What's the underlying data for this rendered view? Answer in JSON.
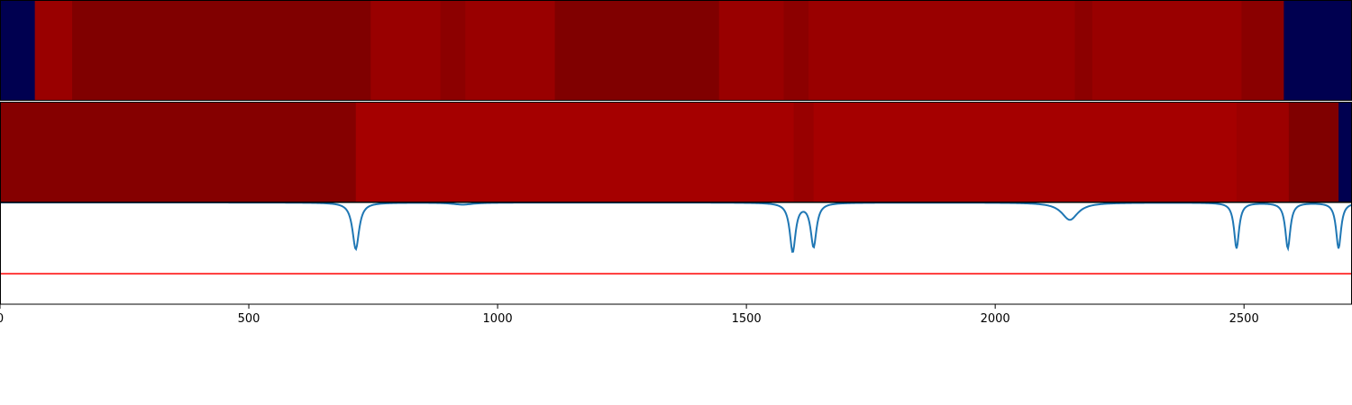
{
  "chart_data": [
    {
      "type": "heatmap",
      "name": "segment-track-1",
      "title": "",
      "segments": [
        {
          "start": 0,
          "end": 70,
          "color": "#000050"
        },
        {
          "start": 70,
          "end": 145,
          "color": "#990000"
        },
        {
          "start": 145,
          "end": 745,
          "color": "#800000"
        },
        {
          "start": 745,
          "end": 885,
          "color": "#990000"
        },
        {
          "start": 885,
          "end": 935,
          "color": "#8c0000"
        },
        {
          "start": 935,
          "end": 1115,
          "color": "#990000"
        },
        {
          "start": 1115,
          "end": 1445,
          "color": "#800000"
        },
        {
          "start": 1445,
          "end": 1575,
          "color": "#990000"
        },
        {
          "start": 1575,
          "end": 1625,
          "color": "#8c0000"
        },
        {
          "start": 1625,
          "end": 2160,
          "color": "#990000"
        },
        {
          "start": 2160,
          "end": 2195,
          "color": "#8c0000"
        },
        {
          "start": 2195,
          "end": 2495,
          "color": "#990000"
        },
        {
          "start": 2495,
          "end": 2580,
          "color": "#8a0000"
        },
        {
          "start": 2580,
          "end": 2717,
          "color": "#000050"
        }
      ]
    },
    {
      "type": "heatmap",
      "name": "segment-track-2",
      "title": "",
      "segments": [
        {
          "start": 0,
          "end": 715,
          "color": "#850000"
        },
        {
          "start": 715,
          "end": 1595,
          "color": "#a50000"
        },
        {
          "start": 1595,
          "end": 1635,
          "color": "#980000"
        },
        {
          "start": 1635,
          "end": 2485,
          "color": "#a50000"
        },
        {
          "start": 2485,
          "end": 2590,
          "color": "#9c0000"
        },
        {
          "start": 2590,
          "end": 2690,
          "color": "#800000"
        },
        {
          "start": 2690,
          "end": 2717,
          "color": "#000050"
        }
      ]
    },
    {
      "type": "line",
      "name": "signal-panel",
      "title": "",
      "xlabel": "",
      "ylabel": "",
      "xlim": [
        0,
        2717
      ],
      "ylim": [
        -0.75,
        0.25
      ],
      "x_ticks": [
        0,
        500,
        1000,
        1500,
        2000,
        2500
      ],
      "x_tick_labels": [
        "0",
        "500",
        "1000",
        "1500",
        "2000",
        "2500"
      ],
      "grid": false,
      "baseline": 0.25,
      "dips": [
        {
          "x": 715,
          "depth": 0.46,
          "width": 8
        },
        {
          "x": 930,
          "depth": 0.02,
          "width": 25
        },
        {
          "x": 1593,
          "depth": 0.48,
          "width": 7
        },
        {
          "x": 1635,
          "depth": 0.43,
          "width": 7
        },
        {
          "x": 2150,
          "depth": 0.17,
          "width": 20
        },
        {
          "x": 2485,
          "depth": 0.45,
          "width": 6
        },
        {
          "x": 2588,
          "depth": 0.45,
          "width": 6
        },
        {
          "x": 2690,
          "depth": 0.45,
          "width": 6
        }
      ],
      "series": [
        {
          "color": "#1f77b4"
        }
      ],
      "threshold_line": {
        "y": -0.45,
        "color": "#ff0000"
      }
    }
  ]
}
